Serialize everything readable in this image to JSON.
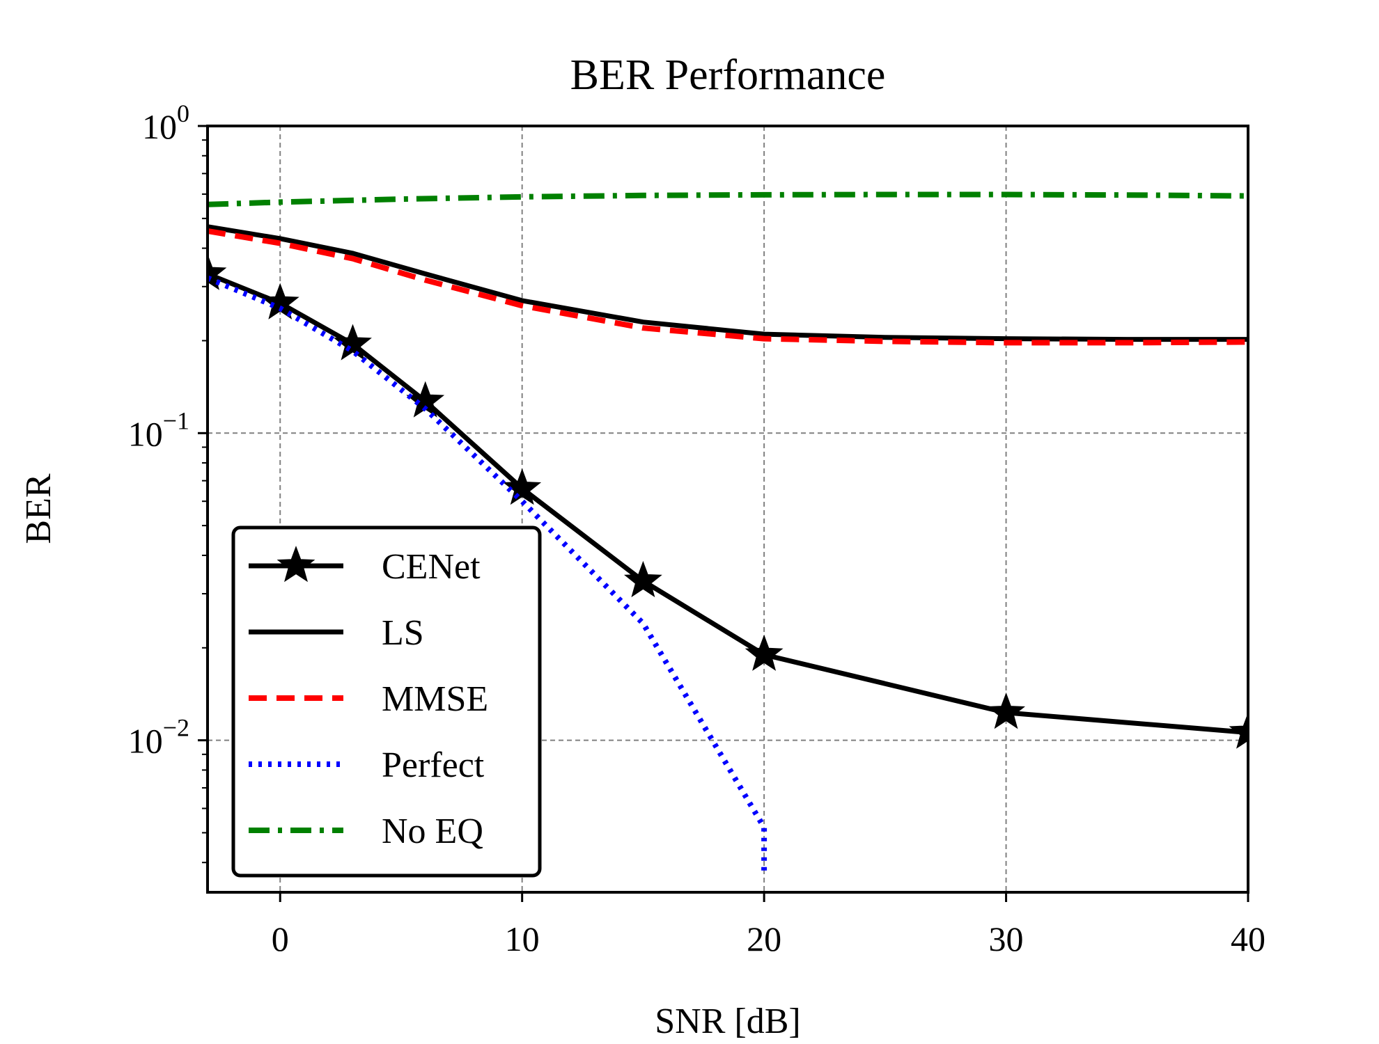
{
  "chart_data": {
    "type": "line",
    "title": "BER Performance",
    "xlabel": "SNR [dB]",
    "ylabel": "BER",
    "xlim": [
      -3,
      40
    ],
    "ylim": [
      0.0032,
      1.0
    ],
    "yscale": "log",
    "grid": true,
    "legend_position": "lower-left",
    "x_ticks": [
      {
        "value": 0,
        "label": "0"
      },
      {
        "value": 10,
        "label": "10"
      },
      {
        "value": 20,
        "label": "20"
      },
      {
        "value": 30,
        "label": "30"
      },
      {
        "value": 40,
        "label": "40"
      }
    ],
    "y_ticks": [
      {
        "value": 1,
        "base": "10",
        "exp": "0"
      },
      {
        "value": 0.1,
        "base": "10",
        "exp": "−1"
      },
      {
        "value": 0.01,
        "base": "10",
        "exp": "−2"
      }
    ],
    "series": [
      {
        "name": "CENet",
        "color": "#000000",
        "style": "solid",
        "marker": "star",
        "x": [
          -3,
          0,
          3,
          6,
          10,
          15,
          20,
          30,
          40
        ],
        "y": [
          0.33,
          0.265,
          0.195,
          0.127,
          0.066,
          0.033,
          0.019,
          0.0123,
          0.0106
        ]
      },
      {
        "name": "LS",
        "color": "#000000",
        "style": "solid",
        "marker": "none",
        "x": [
          -3,
          0,
          3,
          6,
          10,
          15,
          20,
          25,
          30,
          35,
          40
        ],
        "y": [
          0.47,
          0.43,
          0.385,
          0.33,
          0.27,
          0.23,
          0.21,
          0.205,
          0.203,
          0.202,
          0.202
        ]
      },
      {
        "name": "MMSE",
        "color": "#ff0000",
        "style": "dashed",
        "marker": "none",
        "x": [
          -3,
          0,
          3,
          6,
          10,
          15,
          20,
          25,
          30,
          35,
          40
        ],
        "y": [
          0.455,
          0.415,
          0.37,
          0.315,
          0.26,
          0.22,
          0.203,
          0.199,
          0.197,
          0.197,
          0.198
        ]
      },
      {
        "name": "Perfect",
        "color": "#0000ff",
        "style": "dotted",
        "marker": "none",
        "x": [
          -3,
          0,
          3,
          6,
          10,
          15,
          20,
          20
        ],
        "y": [
          0.32,
          0.255,
          0.185,
          0.12,
          0.06,
          0.024,
          0.0052,
          0.0036
        ]
      },
      {
        "name": "No EQ",
        "color": "#008000",
        "style": "dashdot",
        "marker": "none",
        "x": [
          -3,
          0,
          5,
          10,
          15,
          20,
          25,
          30,
          35,
          40
        ],
        "y": [
          0.555,
          0.565,
          0.578,
          0.588,
          0.594,
          0.597,
          0.598,
          0.598,
          0.596,
          0.592
        ]
      }
    ]
  }
}
